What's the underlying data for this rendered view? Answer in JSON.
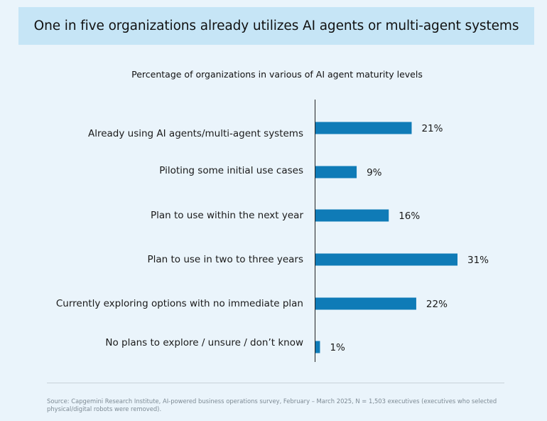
{
  "title": "One in five organizations already utilizes AI agents or multi-agent systems",
  "subtitle": "Percentage of organizations in various of AI agent maturity levels",
  "source": "Source: Capgemini Research Institute, AI-powered business operations survey, February – March 2025, N = 1,503 executives (executives who selected physical/digital robots were removed).",
  "colors": {
    "bar": "#0f7bb7",
    "banner": "#c6e5f6",
    "background": "#eaf4fb"
  },
  "chart_data": {
    "type": "bar",
    "orientation": "horizontal",
    "categories": [
      "Already using AI agents/multi-agent systems",
      "Piloting some initial use cases",
      "Plan to use within the next year",
      "Plan to use in two to three years",
      "Currently exploring options with no immediate plan",
      "No plans to explore / unsure / don’t know"
    ],
    "values": [
      21,
      9,
      16,
      31,
      22,
      1
    ],
    "value_labels": [
      "21%",
      "9%",
      "16%",
      "31%",
      "22%",
      "1%"
    ],
    "title": "Percentage of organizations in various of AI agent maturity levels",
    "xlim": [
      0,
      31
    ],
    "grid": false,
    "legend": "none"
  }
}
